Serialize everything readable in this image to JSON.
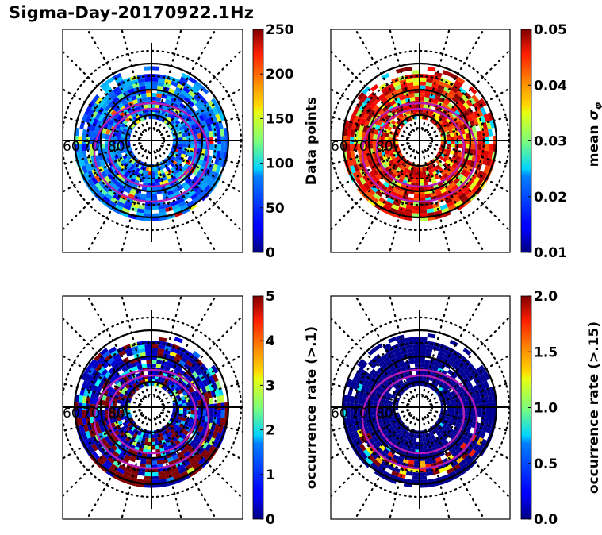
{
  "figure": {
    "title": "Sigma-Day-20170922.1Hz"
  },
  "chart_data": [
    {
      "type": "heatmap",
      "projection": "polar",
      "panel": "top-left",
      "title": "",
      "latitude_labels": [
        "60",
        "70",
        "80"
      ],
      "latitude_circles_solid": [
        60,
        70,
        80
      ],
      "colorbar": {
        "label": "Data points",
        "colormap": "jet",
        "range": [
          0,
          250
        ],
        "ticks": [
          "0",
          "50",
          "100",
          "150",
          "200",
          "250"
        ]
      },
      "description": "Mostly low counts (blue, ~20-80) across ring of ~62-82 deg, cyan/green bands ~100-150, occasional yellow/red cells ~180-230"
    },
    {
      "type": "heatmap",
      "projection": "polar",
      "panel": "top-right",
      "title": "",
      "latitude_labels": [
        "60",
        "70",
        "80"
      ],
      "latitude_circles_solid": [
        60,
        70,
        80
      ],
      "colorbar": {
        "label": "mean σ_φ",
        "label_main": "mean ",
        "label_symbol": "σ",
        "label_sub": "φ",
        "colormap": "jet",
        "range": [
          0.01,
          0.05
        ],
        "ticks": [
          "0.01",
          "0.02",
          "0.03",
          "0.04",
          "0.05"
        ]
      },
      "description": "Predominantly high values (dark red/orange, ~0.04-0.05), with yellow/green bands ~0.03-0.035 and sparse cyan ~0.02"
    },
    {
      "type": "heatmap",
      "projection": "polar",
      "panel": "bottom-left",
      "title": "",
      "latitude_labels": [
        "60",
        "70",
        "80"
      ],
      "latitude_circles_solid": [
        60,
        70,
        80
      ],
      "colorbar": {
        "label": "occurrence rate (>.1)",
        "colormap": "jet",
        "range": [
          0,
          5
        ],
        "ticks": [
          "0",
          "1",
          "2",
          "3",
          "4",
          "5"
        ]
      },
      "description": "Mostly dark blue (~0-0.5) with dark red (>=5) concentrated along the night side near 65-70 deg, scattered cyan/yellow"
    },
    {
      "type": "heatmap",
      "projection": "polar",
      "panel": "bottom-right",
      "title": "",
      "latitude_labels": [
        "60",
        "70",
        "80"
      ],
      "latitude_circles_solid": [
        60,
        70,
        80
      ],
      "colorbar": {
        "label": "occurrence rate (>.15)",
        "colormap": "jet",
        "range": [
          0.0,
          2.0
        ],
        "ticks": [
          "0.0",
          "0.5",
          "1.0",
          "1.5",
          "2.0"
        ]
      },
      "description": "Nearly all dark blue (~0), with dark red/orange/yellow cells near the night-side auroral oval ~65-70 deg"
    }
  ],
  "colors": {
    "oval": "#b41eb4",
    "grid_solid": "#000000",
    "grid_dotted": "#000000"
  }
}
